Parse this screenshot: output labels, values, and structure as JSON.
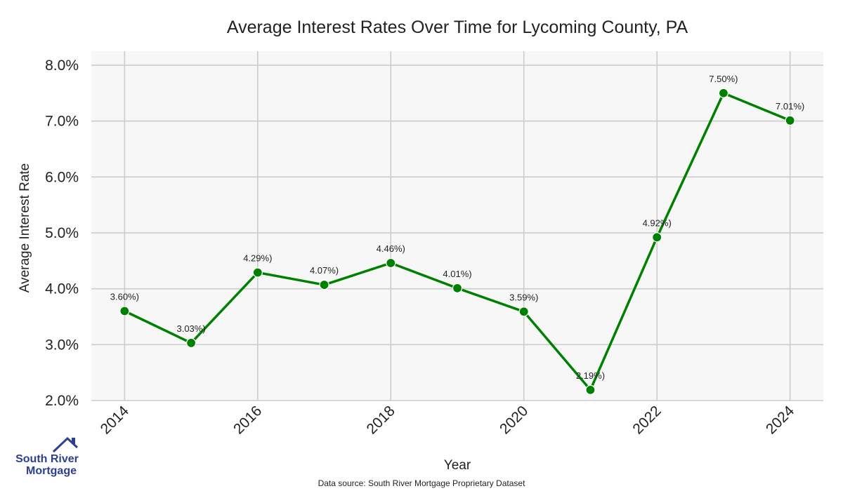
{
  "chart_data": {
    "type": "line",
    "title": "Average Interest Rates Over Time for Lycoming County, PA",
    "xlabel": "Year",
    "ylabel": "Average Interest Rate",
    "x": [
      2014,
      2015,
      2016,
      2017,
      2018,
      2019,
      2020,
      2021,
      2022,
      2023,
      2024
    ],
    "values": [
      3.6,
      3.03,
      4.29,
      4.07,
      4.46,
      4.01,
      3.59,
      2.19,
      4.92,
      7.5,
      7.01
    ],
    "data_labels": [
      "3.60%)",
      "3.03%)",
      "4.29%)",
      "4.07%)",
      "4.46%)",
      "4.01%)",
      "3.59%)",
      "2.19%)",
      "4.92%)",
      "7.50%)",
      "7.01%)"
    ],
    "x_ticks": [
      "2014",
      "2016",
      "2018",
      "2020",
      "2022",
      "2024"
    ],
    "y_ticks": [
      "2.0%",
      "3.0%",
      "4.0%",
      "5.0%",
      "6.0%",
      "7.0%",
      "8.0%"
    ],
    "xlim": [
      2013.5,
      2024.5
    ],
    "ylim": [
      2.0,
      8.25
    ],
    "grid": true,
    "line_color": "#008000",
    "background_color": "#f7f7f7"
  },
  "footer": {
    "source": "Data source: South River Mortgage Proprietary Dataset"
  },
  "logo": {
    "line1": "South River",
    "line2": "Mortgage"
  }
}
